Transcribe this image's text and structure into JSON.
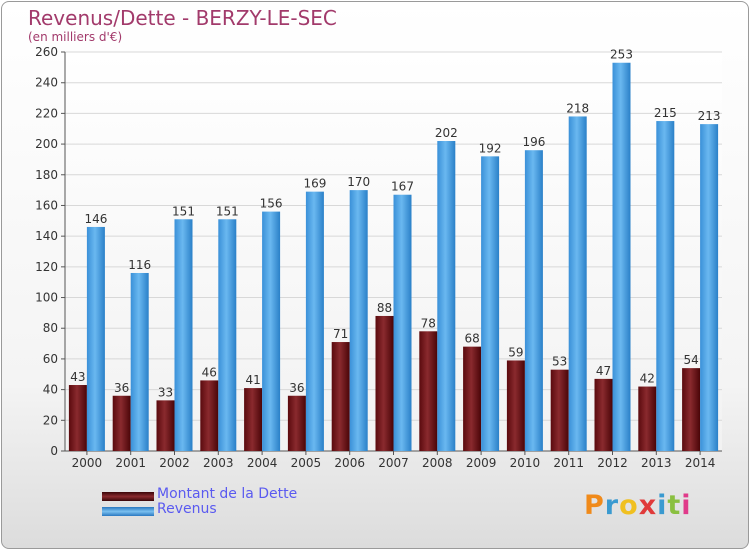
{
  "header": {
    "title": "Revenus/Dette - BERZY-LE-SEC",
    "subtitle": "(en milliers d'€)"
  },
  "legend": [
    {
      "label": "Montant de la Dette",
      "color": "#6b0f14"
    },
    {
      "label": "Revenus",
      "color": "#4a9fe0"
    }
  ],
  "logo": {
    "text": "Proxiti"
  },
  "chart_data": {
    "type": "bar",
    "categories": [
      "2000",
      "2001",
      "2002",
      "2003",
      "2004",
      "2005",
      "2006",
      "2007",
      "2008",
      "2009",
      "2010",
      "2011",
      "2012",
      "2013",
      "2014"
    ],
    "series": [
      {
        "name": "Montant de la Dette",
        "color": "#7a1a1f",
        "values": [
          43,
          36,
          33,
          46,
          41,
          36,
          71,
          88,
          78,
          68,
          59,
          53,
          47,
          42,
          54
        ]
      },
      {
        "name": "Revenus",
        "color": "#4a9fe0",
        "values": [
          146,
          116,
          151,
          151,
          156,
          169,
          170,
          167,
          202,
          192,
          196,
          218,
          253,
          215,
          213
        ]
      }
    ],
    "yticks": [
      0,
      20,
      40,
      60,
      80,
      100,
      120,
      140,
      160,
      180,
      200,
      220,
      240,
      260
    ],
    "ylim": [
      0,
      260
    ],
    "grid": true,
    "legend_position": "bottom-left"
  }
}
